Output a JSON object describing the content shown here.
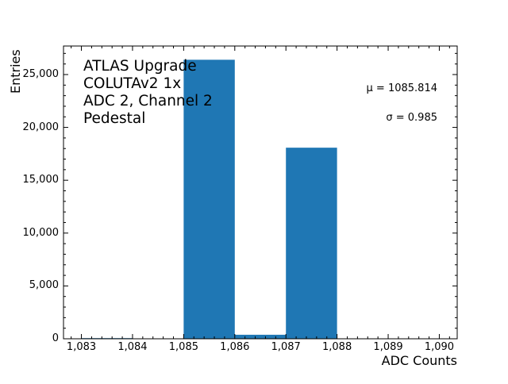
{
  "chart_data": {
    "type": "bar",
    "subtype": "histogram",
    "title": "",
    "xlabel": "ADC Counts",
    "ylabel": "Entries",
    "xlim": [
      1082.65,
      1090.35
    ],
    "ylim": [
      0,
      27700
    ],
    "x_ticks": [
      "1,083",
      "1,084",
      "1,085",
      "1,086",
      "1,087",
      "1,088",
      "1,089",
      "1,090"
    ],
    "x_tick_values": [
      1083,
      1084,
      1085,
      1086,
      1087,
      1088,
      1089,
      1090
    ],
    "y_ticks": [
      "0",
      "5,000",
      "10,000",
      "15,000",
      "20,000",
      "25,000"
    ],
    "y_tick_values": [
      0,
      5000,
      10000,
      15000,
      20000,
      25000
    ],
    "bin_edges": [
      1083,
      1084,
      1085,
      1086,
      1087,
      1088,
      1089,
      1090
    ],
    "categories": [
      "1083-1084",
      "1084-1085",
      "1085-1086",
      "1086-1087",
      "1087-1088",
      "1088-1089",
      "1089-1090"
    ],
    "values": [
      60,
      0,
      26400,
      380,
      18080,
      0,
      0
    ],
    "bar_color": "#1f77b4",
    "grid": false,
    "legend": null,
    "annotations": {
      "label_lines": [
        "ATLAS Upgrade",
        "COLUTAv2 1x",
        "ADC 2, Channel 2",
        "Pedestal"
      ],
      "mean": "μ = 1085.814",
      "sigma": "σ = 0.985"
    }
  }
}
